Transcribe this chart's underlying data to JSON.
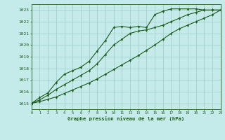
{
  "title": "Graphe pression niveau de la mer (hPa)",
  "bg_color": "#c5eaea",
  "grid_color": "#9acaca",
  "line_color": "#1a5c1a",
  "xlim": [
    0,
    23
  ],
  "ylim": [
    1014.5,
    1023.5
  ],
  "yticks": [
    1015,
    1016,
    1017,
    1018,
    1019,
    1020,
    1021,
    1022,
    1023
  ],
  "xticks": [
    0,
    1,
    2,
    3,
    4,
    5,
    6,
    7,
    8,
    9,
    10,
    11,
    12,
    13,
    14,
    15,
    16,
    17,
    18,
    19,
    20,
    21,
    22,
    23
  ],
  "series1": {
    "x": [
      0,
      1,
      2,
      3,
      4,
      5,
      6,
      7,
      8,
      9,
      10,
      11,
      12,
      13,
      14,
      15,
      16,
      17,
      18,
      19,
      20,
      21,
      22,
      23
    ],
    "y": [
      1015.0,
      1015.5,
      1015.9,
      1016.8,
      1017.5,
      1017.8,
      1018.1,
      1018.6,
      1019.5,
      1020.4,
      1021.5,
      1021.6,
      1021.5,
      1021.6,
      1021.5,
      1022.6,
      1022.9,
      1023.1,
      1023.1,
      1023.1,
      1023.1,
      1023.0,
      1023.0,
      1023.0
    ]
  },
  "series2": {
    "x": [
      0,
      1,
      2,
      3,
      4,
      5,
      6,
      7,
      8,
      9,
      10,
      11,
      12,
      13,
      14,
      15,
      16,
      17,
      18,
      19,
      20,
      21,
      22,
      23
    ],
    "y": [
      1015.0,
      1015.3,
      1015.7,
      1016.2,
      1016.6,
      1017.0,
      1017.4,
      1017.8,
      1018.4,
      1019.2,
      1020.0,
      1020.5,
      1021.0,
      1021.2,
      1021.3,
      1021.5,
      1021.7,
      1022.0,
      1022.3,
      1022.6,
      1022.8,
      1023.0,
      1023.0,
      1023.0
    ]
  },
  "series3": {
    "x": [
      0,
      1,
      2,
      3,
      4,
      5,
      6,
      7,
      8,
      9,
      10,
      11,
      12,
      13,
      14,
      15,
      16,
      17,
      18,
      19,
      20,
      21,
      22,
      23
    ],
    "y": [
      1015.0,
      1015.15,
      1015.35,
      1015.55,
      1015.85,
      1016.15,
      1016.45,
      1016.75,
      1017.1,
      1017.5,
      1017.9,
      1018.3,
      1018.7,
      1019.1,
      1019.55,
      1020.0,
      1020.5,
      1021.0,
      1021.4,
      1021.7,
      1022.0,
      1022.3,
      1022.6,
      1023.0
    ]
  }
}
